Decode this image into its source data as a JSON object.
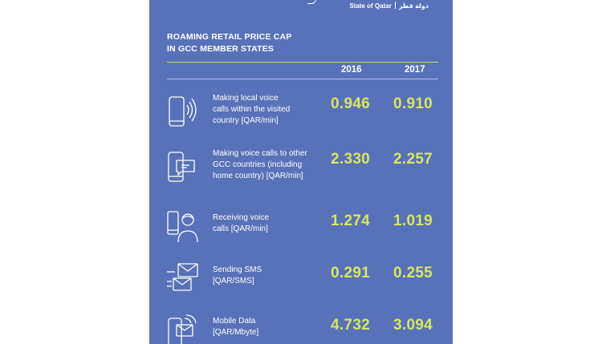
{
  "brand": {
    "en": "State of Qatar",
    "ar": "دولة قطر"
  },
  "title": {
    "line1": "ROAMING RETAIL PRICE CAP",
    "line2": "IN GCC MEMBER STATES"
  },
  "years": [
    "2016",
    "2017"
  ],
  "rows": [
    {
      "icon": "phone-signal-icon",
      "label": [
        "Making local voice",
        "calls within the visited",
        "country [QAR/min]"
      ],
      "v2016": "0.946",
      "v2017": "0.910"
    },
    {
      "icon": "phone-chat-icon",
      "label": [
        "Making voice calls to other",
        "GCC countries (including",
        "home country) [QAR/min]"
      ],
      "v2016": "2.330",
      "v2017": "2.257"
    },
    {
      "icon": "person-phone-icon",
      "label": [
        "Receiving voice",
        "calls [QAR/min]"
      ],
      "v2016": "1.274",
      "v2017": "1.019"
    },
    {
      "icon": "envelope-icon",
      "label": [
        "Sending SMS",
        "[QAR/SMS]"
      ],
      "v2016": "0.291",
      "v2017": "0.255"
    },
    {
      "icon": "mobile-data-icon",
      "label": [
        "Mobile Data",
        "[QAR/Mbyte]"
      ],
      "v2016": "4.732",
      "v2017": "3.094"
    }
  ],
  "colors": {
    "background": "#5872b9",
    "accent": "#d7e85a",
    "rule": "#cfe06a"
  }
}
